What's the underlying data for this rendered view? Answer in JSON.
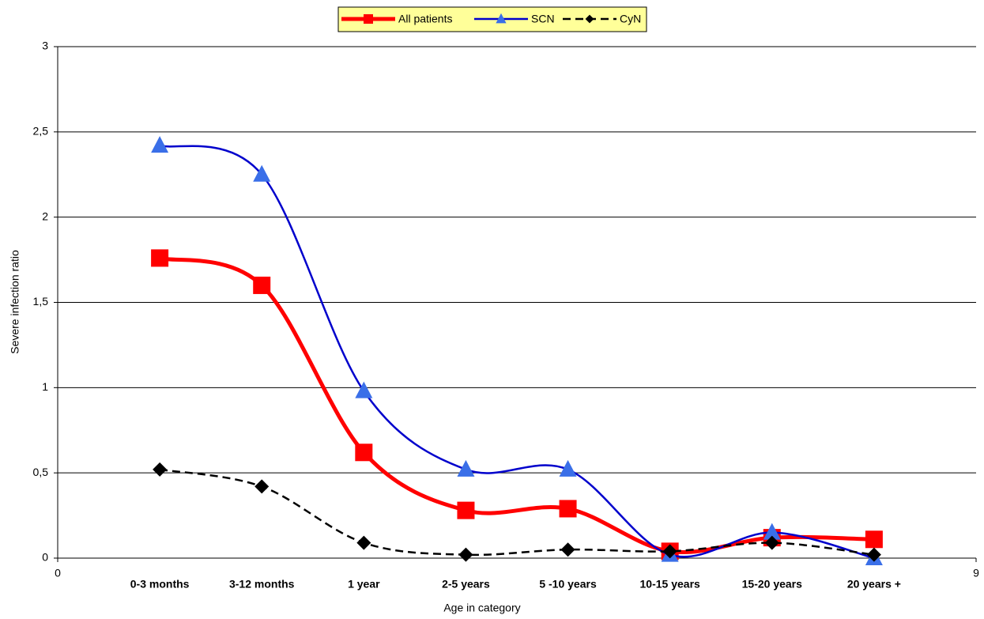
{
  "chart_data": {
    "type": "line",
    "x_label": "Age in category",
    "y_label": "Severe infection ratio",
    "categories": [
      "0-3 months",
      "3-12 months",
      "1 year",
      "2-5 years",
      "5 -10 years",
      "10-15 years",
      "15-20 years",
      "20 years +"
    ],
    "x": [
      1,
      2,
      3,
      4,
      5,
      6,
      7,
      8
    ],
    "xlim": [
      0,
      9
    ],
    "xticks": [
      0,
      9
    ],
    "ylim": [
      0,
      3
    ],
    "yticks": [
      0,
      {
        "value": 0.5,
        "label": "0,5"
      },
      1,
      {
        "value": 1.5,
        "label": "1,5"
      },
      2,
      {
        "value": 2.5,
        "label": "2,5"
      },
      3
    ],
    "grid": true,
    "legend": "top",
    "series": [
      {
        "name": "All patients",
        "color": "#ff0000",
        "marker": "square",
        "dash": "solid",
        "values": [
          1.76,
          1.6,
          0.62,
          0.28,
          0.29,
          0.04,
          0.12,
          0.11
        ]
      },
      {
        "name": "SCN",
        "color": "#0000cc",
        "marker": "triangle",
        "dash": "solid",
        "values": [
          2.42,
          2.25,
          0.98,
          0.52,
          0.52,
          0.02,
          0.15,
          0.0
        ]
      },
      {
        "name": "CyN",
        "color": "#000000",
        "marker": "diamond",
        "dash": "dashed",
        "values": [
          0.52,
          0.42,
          0.09,
          0.02,
          0.05,
          0.04,
          0.09,
          0.02
        ]
      }
    ]
  }
}
